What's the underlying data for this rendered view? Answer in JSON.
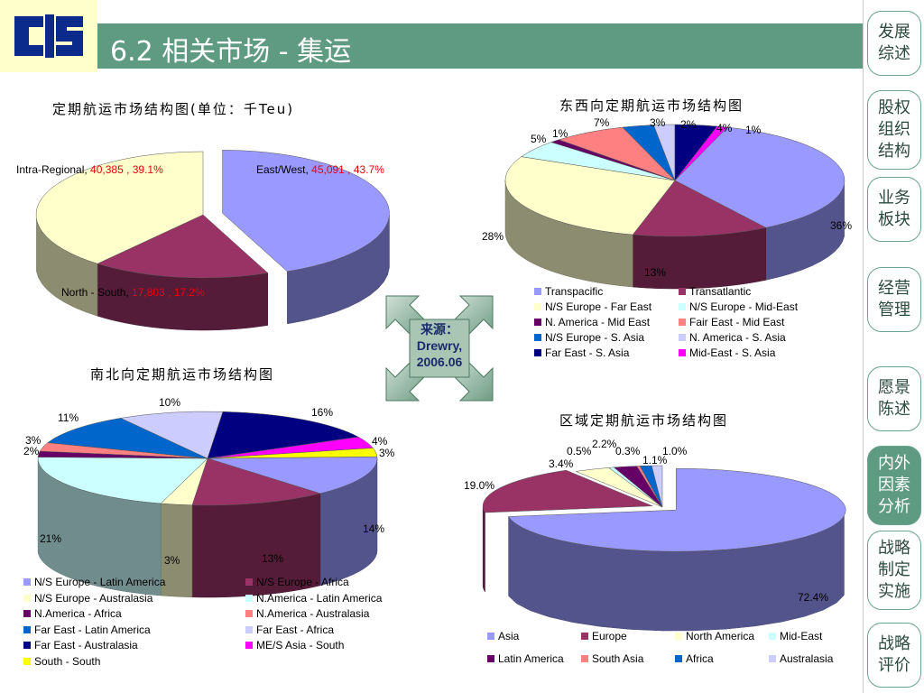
{
  "header": {
    "title": "6.2 相关市场 - 集运"
  },
  "source": {
    "line1": "来源：",
    "line2": "Drewry,",
    "line3": "2006.06"
  },
  "sidebar": {
    "items": [
      {
        "label": "发展综述",
        "lines": [
          "发展",
          "综述"
        ],
        "active": false
      },
      {
        "label": "股权组织结构",
        "lines": [
          "股权",
          "组织",
          "结构"
        ],
        "active": false
      },
      {
        "label": "业务板块",
        "lines": [
          "业务",
          "板块"
        ],
        "active": false
      },
      {
        "label": "经营管理",
        "lines": [
          "经营",
          "管理"
        ],
        "active": false
      },
      {
        "label": "愿景陈述",
        "lines": [
          "愿景",
          "陈述"
        ],
        "active": false
      },
      {
        "label": "内外因素分析",
        "lines": [
          "内外",
          "因素",
          "分析"
        ],
        "active": true
      },
      {
        "label": "战略制定实施",
        "lines": [
          "战略",
          "制定",
          "实施"
        ],
        "active": false
      },
      {
        "label": "战略评价",
        "lines": [
          "战略",
          "评价"
        ],
        "active": false
      }
    ]
  },
  "colors": {
    "title_bar": "#5f9a83",
    "accent_red": "#e8000b",
    "logo_blue": "#0a2a8c"
  },
  "chart_data": [
    {
      "type": "pie",
      "title": "定期航运市场结构图(单位：千Teu)",
      "slices": [
        {
          "name": "East/West",
          "value": 45091,
          "percent": "43.7%",
          "color": "#9999ff"
        },
        {
          "name": "North - South",
          "value": 17803,
          "percent": "17.2%",
          "color": "#993366"
        },
        {
          "name": "Intra-Regional",
          "value": 40385,
          "percent": "39.1%",
          "color": "#ffffcc"
        }
      ],
      "labels": {
        "ew_name": "East/West, ",
        "ew_value": "45,091 , 43.7%",
        "ns_name": "North - South, ",
        "ns_value": "17,803 , 17.2%",
        "ir_name": "Intra-Regional, ",
        "ir_value": "40,385 , 39.1%"
      }
    },
    {
      "type": "pie",
      "title": "东西向定期航运市场结构图",
      "slices": [
        {
          "name": "Transpacific",
          "value": 36,
          "color": "#9999ff"
        },
        {
          "name": "Transatlantic",
          "value": 13,
          "color": "#993366"
        },
        {
          "name": "N/S Europe - Far East",
          "value": 28,
          "color": "#ffffcc"
        },
        {
          "name": "N/S Europe - Mid-East",
          "value": 5,
          "color": "#ccffff"
        },
        {
          "name": "N. America - Mid East",
          "value": 1,
          "color": "#660066"
        },
        {
          "name": "Fair East - Mid East",
          "value": 7,
          "color": "#ff8080"
        },
        {
          "name": "N/S Europe - S. Asia",
          "value": 3,
          "color": "#0066cc"
        },
        {
          "name": "N. America - S. Asia",
          "value": 2,
          "color": "#ccccff"
        },
        {
          "name": "Far East - S. Asia",
          "value": 4,
          "color": "#000080"
        },
        {
          "name": "Mid-East - S. Asia",
          "value": 1,
          "color": "#ff00ff"
        }
      ],
      "pct_labels": [
        "36%",
        "13%",
        "28%",
        "5%",
        "1%",
        "7%",
        "3%",
        "2%",
        "4%",
        "1%"
      ]
    },
    {
      "type": "pie",
      "title": "南北向定期航运市场结构图",
      "slices": [
        {
          "name": "N/S Europe - Latin America",
          "value": 14,
          "color": "#9999ff"
        },
        {
          "name": "N/S Europe - Africa",
          "value": 13,
          "color": "#993366"
        },
        {
          "name": "N/S Europe - Australasia",
          "value": 3,
          "color": "#ffffcc"
        },
        {
          "name": "N.America - Latin America",
          "value": 21,
          "color": "#ccffff"
        },
        {
          "name": "N.America - Africa",
          "value": 2,
          "color": "#660066"
        },
        {
          "name": "N.America - Australasia",
          "value": 3,
          "color": "#ff8080"
        },
        {
          "name": "Far East - Latin America",
          "value": 11,
          "color": "#0066cc"
        },
        {
          "name": "Far East - Africa",
          "value": 10,
          "color": "#ccccff"
        },
        {
          "name": "Far East - Australasia",
          "value": 16,
          "color": "#000080"
        },
        {
          "name": "ME/S Asia - South",
          "value": 4,
          "color": "#ff00ff"
        },
        {
          "name": "South - South",
          "value": 3,
          "color": "#ffff00"
        }
      ],
      "pct_labels": [
        "14%",
        "13%",
        "3%",
        "21%",
        "2%",
        "3%",
        "11%",
        "10%",
        "16%",
        "4%",
        "3%"
      ]
    },
    {
      "type": "pie",
      "title": "区域定期航运市场结构图",
      "slices": [
        {
          "name": "Asia",
          "value": 72.4,
          "color": "#9999ff"
        },
        {
          "name": "Europe",
          "value": 19.0,
          "color": "#993366"
        },
        {
          "name": "North America",
          "value": 3.4,
          "color": "#ffffcc"
        },
        {
          "name": "Mid-East",
          "value": 0.5,
          "color": "#ccffff"
        },
        {
          "name": "Latin America",
          "value": 2.2,
          "color": "#660066"
        },
        {
          "name": "South Asia",
          "value": 0.3,
          "color": "#ff8080"
        },
        {
          "name": "Africa",
          "value": 1.1,
          "color": "#0066cc"
        },
        {
          "name": "Australasia",
          "value": 1.0,
          "color": "#ccccff"
        }
      ],
      "pct_labels": [
        "72.4%",
        "19.0%",
        "3.4%",
        "0.5%",
        "2.2%",
        "0.3%",
        "1.1%",
        "1.0%"
      ]
    }
  ]
}
